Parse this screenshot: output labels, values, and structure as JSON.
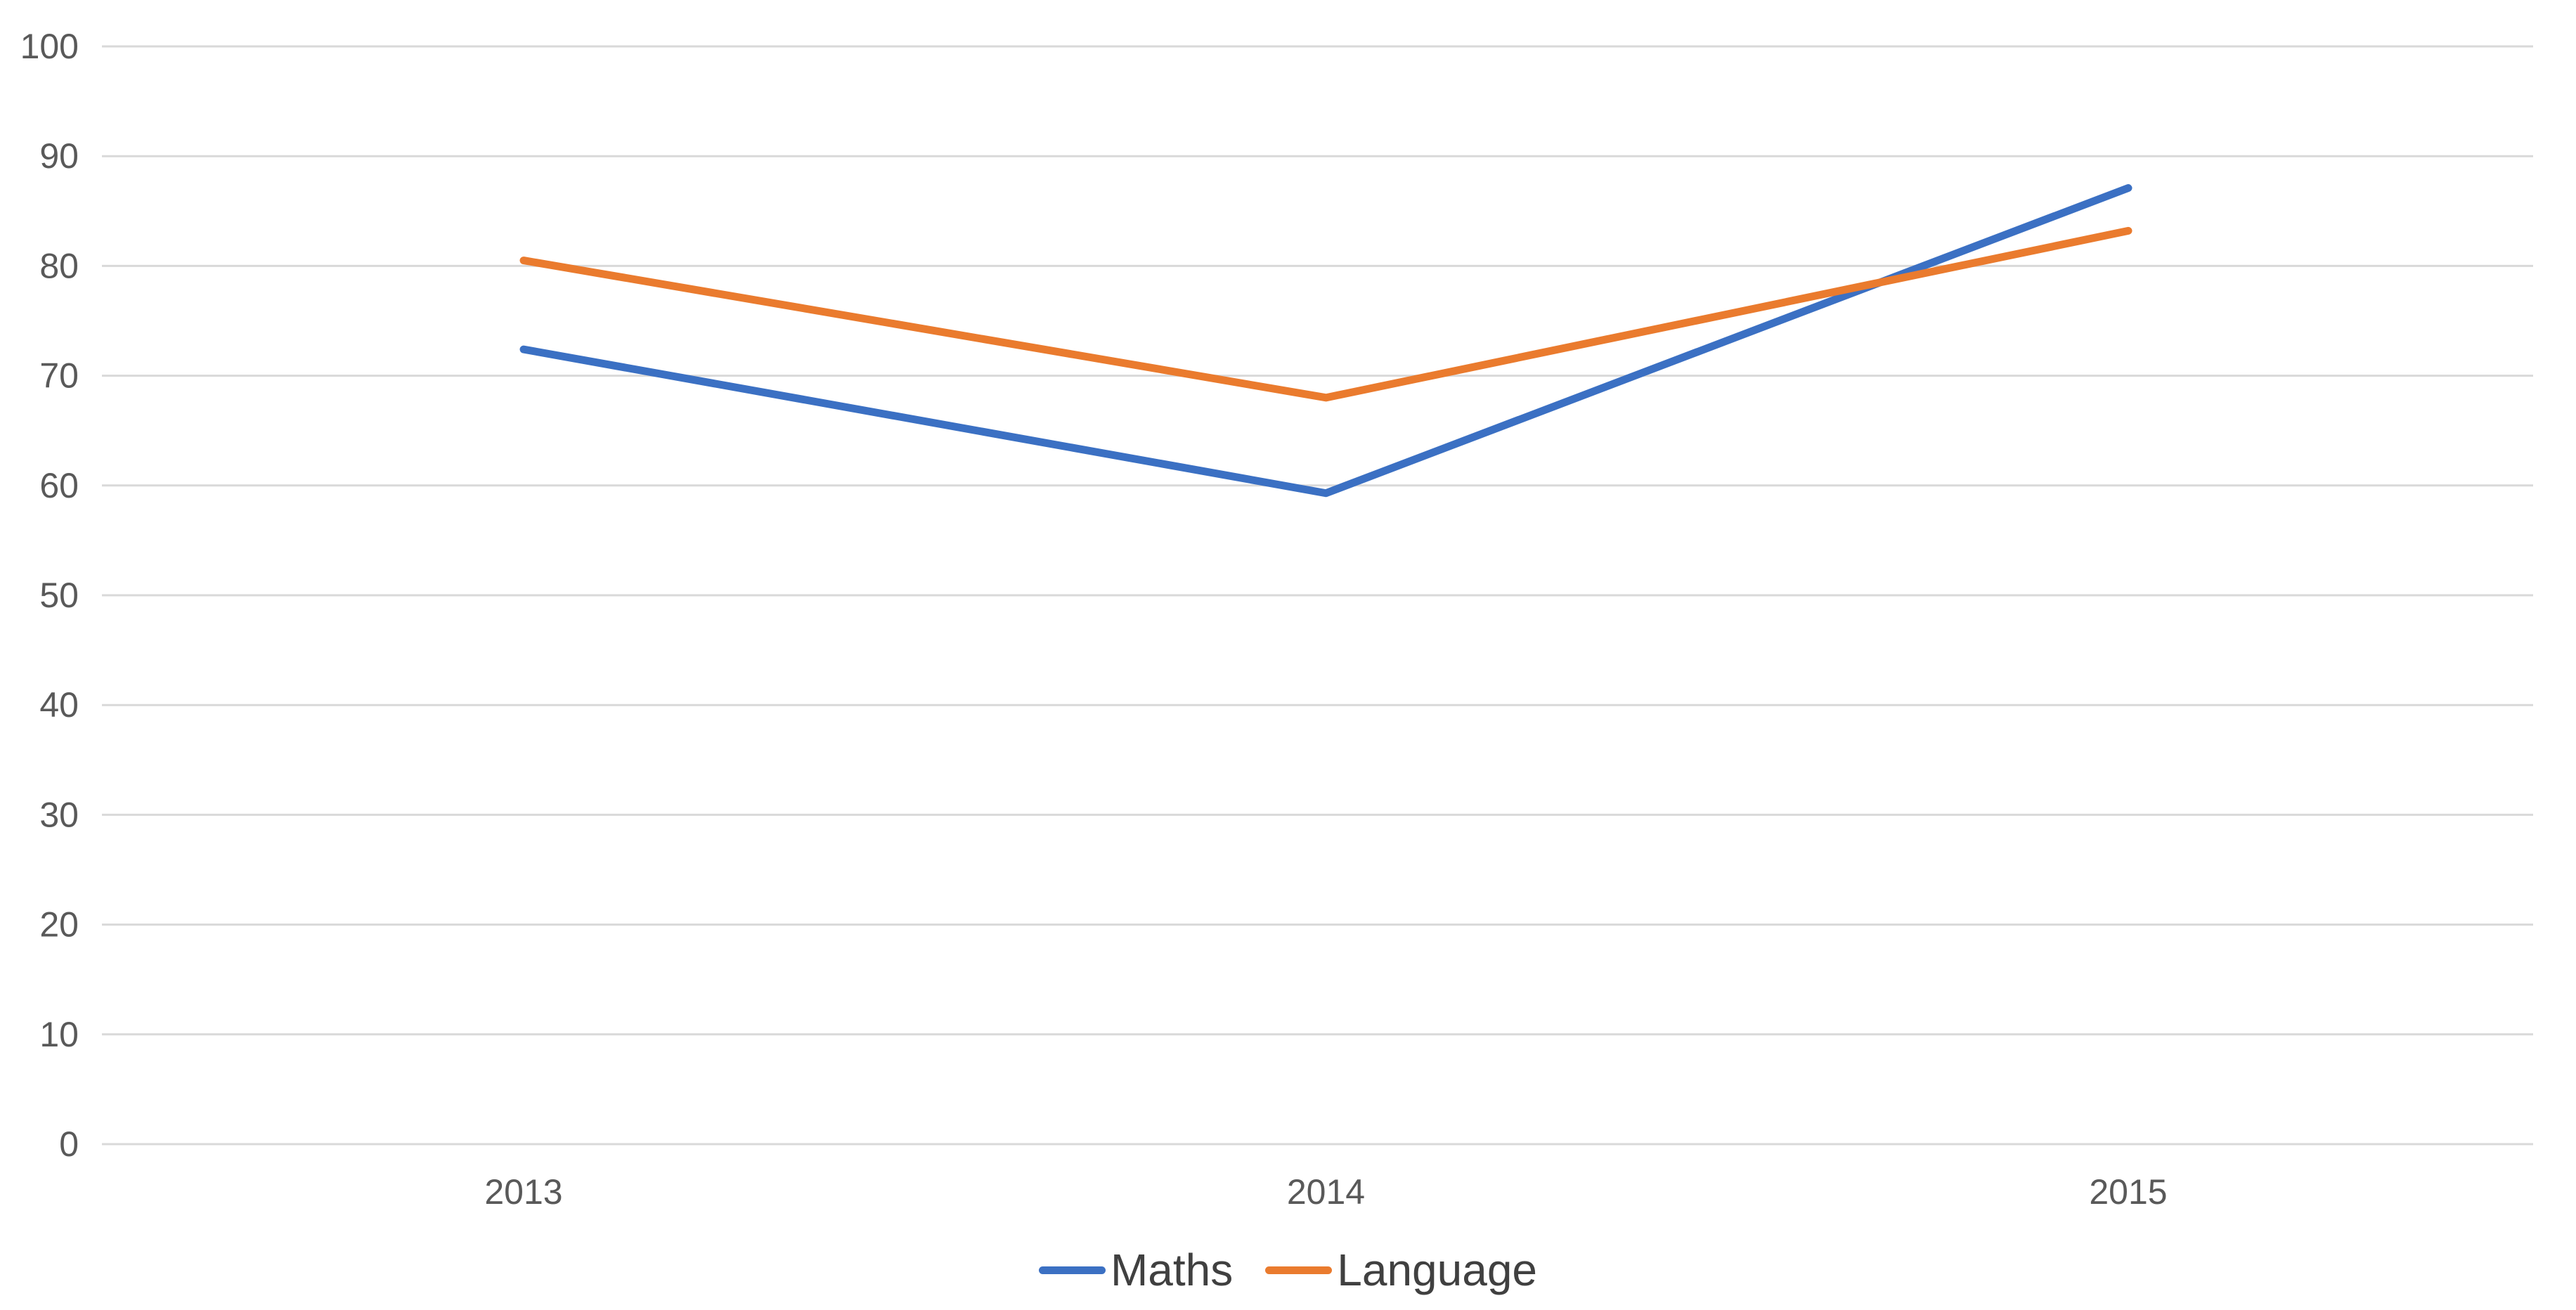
{
  "chart_data": {
    "type": "line",
    "categories": [
      "2013",
      "2014",
      "2015"
    ],
    "series": [
      {
        "name": "Maths",
        "color": "#3B70C3",
        "values": [
          72.4,
          59.3,
          87.1
        ]
      },
      {
        "name": "Language",
        "color": "#EA7B2E",
        "values": [
          80.5,
          68.0,
          83.2
        ]
      }
    ],
    "title": "",
    "xlabel": "",
    "ylabel": "",
    "ylim": [
      0,
      100
    ],
    "y_ticks": [
      0,
      10,
      20,
      30,
      40,
      50,
      60,
      70,
      80,
      90,
      100
    ],
    "grid": true,
    "legend_position": "bottom-center",
    "colors": {
      "background": "#FFFFFF",
      "gridline": "#D9D9D9",
      "tick_label": "#595959",
      "legend_label": "#404040"
    }
  }
}
